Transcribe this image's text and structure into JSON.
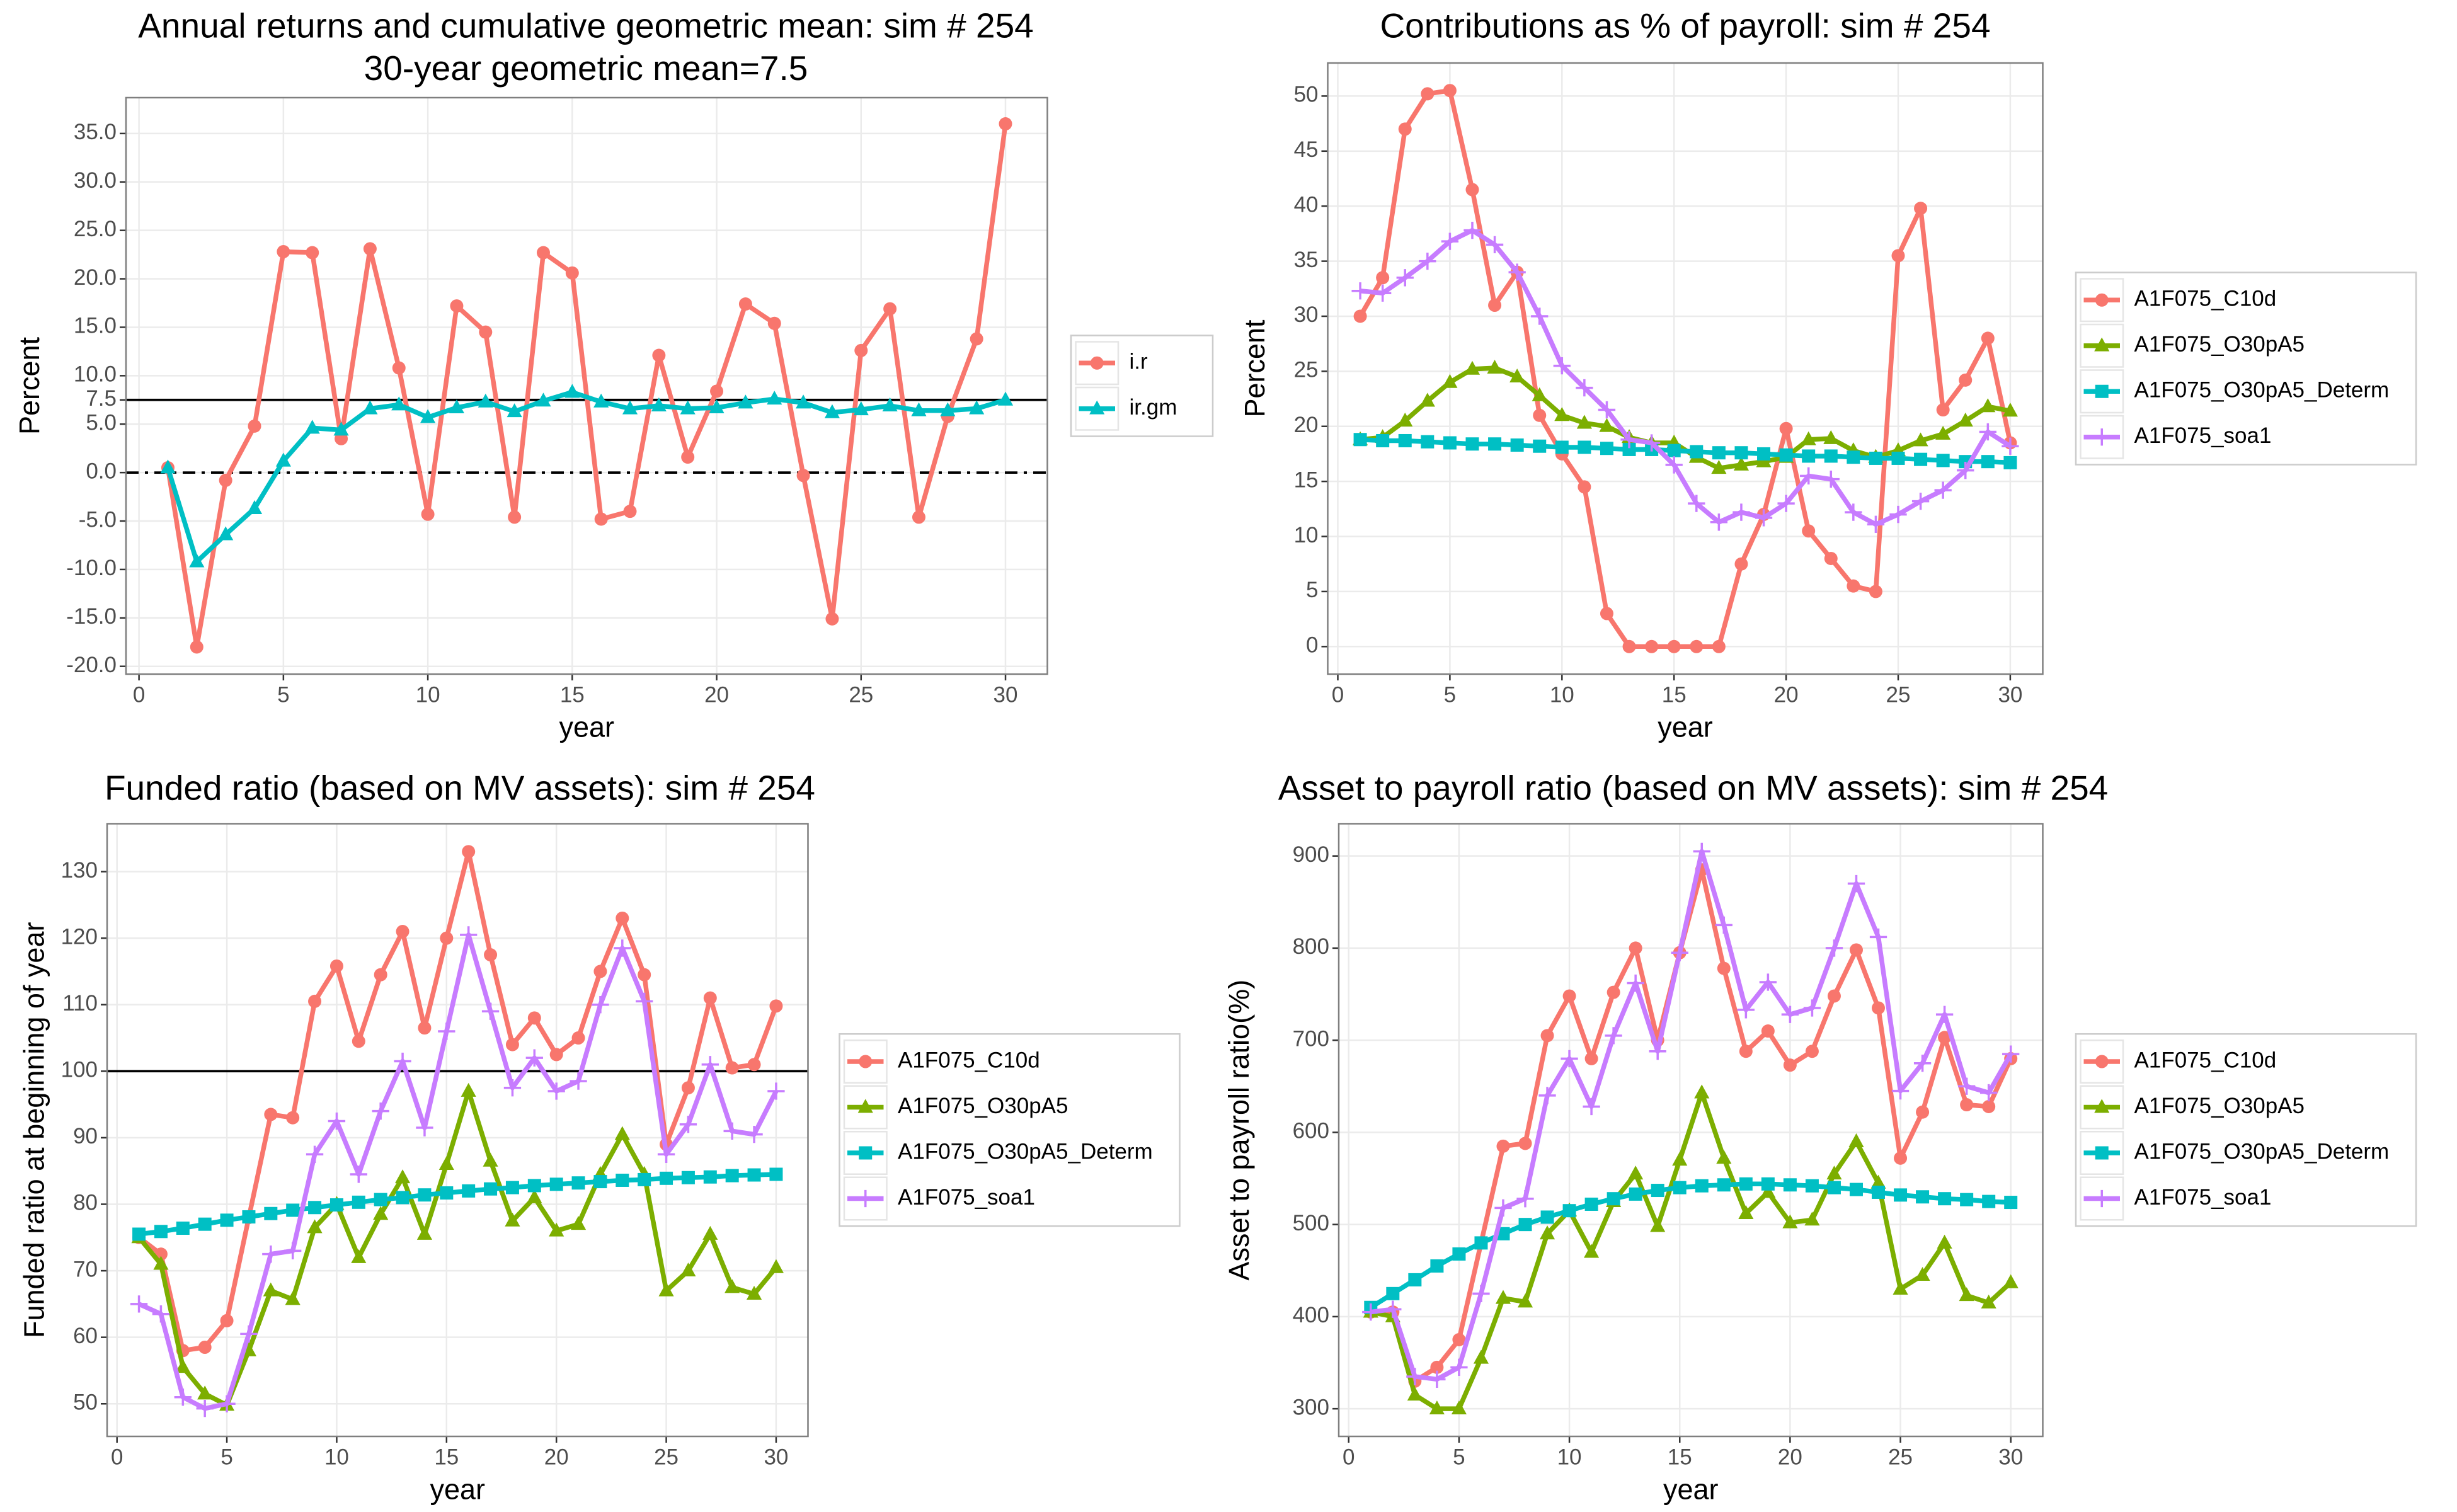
{
  "chart_data": [
    {
      "type": "line",
      "title": "Annual returns and cumulative geometric mean: sim # 254",
      "subtitle": "30-year geometric mean=7.5",
      "x_label": "year",
      "y_label": "Percent",
      "x": [
        1,
        2,
        3,
        4,
        5,
        6,
        7,
        8,
        9,
        10,
        11,
        12,
        13,
        14,
        15,
        16,
        17,
        18,
        19,
        20,
        21,
        22,
        23,
        24,
        25,
        26,
        27,
        28,
        29,
        30
      ],
      "series": [
        {
          "name": "i.r",
          "color": "#F8766D",
          "marker": "circle",
          "values": [
            0.5,
            -18.0,
            -0.8,
            4.8,
            22.8,
            22.7,
            3.5,
            23.1,
            10.8,
            -4.3,
            17.2,
            14.5,
            -4.6,
            22.7,
            20.6,
            -4.8,
            -4.0,
            12.1,
            1.6,
            8.4,
            17.4,
            15.4,
            -0.3,
            -15.1,
            12.6,
            16.9,
            -4.6,
            5.8,
            13.8,
            36.0
          ]
        },
        {
          "name": "ir.gm",
          "color": "#00BFC4",
          "marker": "triangle",
          "values": [
            0.5,
            -9.2,
            -6.4,
            -3.7,
            1.2,
            4.6,
            4.4,
            6.6,
            7.0,
            5.7,
            6.7,
            7.3,
            6.3,
            7.4,
            8.3,
            7.3,
            6.6,
            6.9,
            6.6,
            6.7,
            7.2,
            7.6,
            7.2,
            6.2,
            6.5,
            6.9,
            6.4,
            6.4,
            6.6,
            7.5
          ]
        }
      ],
      "xlim": [
        -0.45,
        31.45
      ],
      "ylim": [
        -20.8,
        38.7
      ],
      "xticks": [
        0,
        5,
        10,
        15,
        20,
        25,
        30
      ],
      "yticks": [
        {
          "value": -20,
          "label": "-20.0"
        },
        {
          "value": -15,
          "label": "-15.0"
        },
        {
          "value": -10,
          "label": "-10.0"
        },
        {
          "value": -5,
          "label": "-5.0"
        },
        {
          "value": 0,
          "label": "0.0"
        },
        {
          "value": 5,
          "label": "5.0"
        },
        7.5,
        {
          "value": 10,
          "label": "10.0"
        },
        {
          "value": 15,
          "label": "15.0"
        },
        {
          "value": 20,
          "label": "20.0"
        },
        {
          "value": 25,
          "label": "25.0"
        },
        {
          "value": 30,
          "label": "30.0"
        },
        {
          "value": 35,
          "label": "35.0"
        }
      ],
      "hlines": [
        {
          "value": 7.5,
          "style": "solid"
        },
        {
          "value": 0,
          "style": "dashdot"
        }
      ],
      "grid": true
    },
    {
      "type": "line",
      "title": "Contributions as % of payroll: sim # 254",
      "x_label": "year",
      "y_label": "Percent",
      "x": [
        1,
        2,
        3,
        4,
        5,
        6,
        7,
        8,
        9,
        10,
        11,
        12,
        13,
        14,
        15,
        16,
        17,
        18,
        19,
        20,
        21,
        22,
        23,
        24,
        25,
        26,
        27,
        28,
        29,
        30
      ],
      "series": [
        {
          "name": "A1F075_C10d",
          "color": "#F8766D",
          "marker": "circle",
          "values": [
            30,
            33.5,
            47,
            50.2,
            50.5,
            41.5,
            31,
            34,
            21,
            17.5,
            14.5,
            3,
            0,
            0,
            0,
            0,
            0,
            7.5,
            12,
            19.8,
            10.5,
            8,
            5.5,
            5,
            35.5,
            39.8,
            21.5,
            24.2,
            28,
            18.5
          ]
        },
        {
          "name": "A1F075_O30pA5",
          "color": "#7CAE00",
          "marker": "triangle",
          "values": [
            18.8,
            19,
            20.5,
            22.3,
            24,
            25.2,
            25.3,
            24.5,
            22.8,
            21,
            20.3,
            20,
            19,
            18.5,
            18.5,
            17.2,
            16.2,
            16.5,
            16.8,
            17.2,
            18.8,
            18.9,
            17.8,
            17.2,
            17.8,
            18.7,
            19.3,
            20.5,
            21.8,
            21.4
          ]
        },
        {
          "name": "A1F075_O30pA5_Determ",
          "color": "#00BFC4",
          "marker": "square",
          "values": [
            18.8,
            18.7,
            18.7,
            18.6,
            18.5,
            18.4,
            18.4,
            18.3,
            18.2,
            18.1,
            18.1,
            18,
            17.9,
            17.9,
            17.8,
            17.7,
            17.6,
            17.6,
            17.5,
            17.4,
            17.3,
            17.3,
            17.2,
            17.1,
            17.1,
            17,
            16.9,
            16.8,
            16.8,
            16.7
          ]
        },
        {
          "name": "A1F075_soa1",
          "color": "#C77CFF",
          "marker": "plus",
          "values": [
            32.3,
            32.1,
            33.5,
            35,
            36.8,
            37.8,
            36.5,
            34,
            30,
            25.5,
            23.5,
            21.5,
            18.8,
            18.5,
            16.5,
            13,
            11.3,
            12.2,
            11.7,
            13,
            15.5,
            15.2,
            12.2,
            11.1,
            12,
            13.2,
            14.2,
            16,
            19.5,
            18.2
          ]
        }
      ],
      "xlim": [
        -0.45,
        31.45
      ],
      "ylim": [
        -2.5,
        53
      ],
      "xticks": [
        0,
        5,
        10,
        15,
        20,
        25,
        30
      ],
      "yticks": [
        0,
        5,
        10,
        15,
        20,
        25,
        30,
        35,
        40,
        45,
        50
      ],
      "grid": true
    },
    {
      "type": "line",
      "title": "Funded ratio (based on MV assets): sim # 254",
      "x_label": "year",
      "y_label": "Funded ratio at beginning of year",
      "x": [
        1,
        2,
        3,
        4,
        5,
        6,
        7,
        8,
        9,
        10,
        11,
        12,
        13,
        14,
        15,
        16,
        17,
        18,
        19,
        20,
        21,
        22,
        23,
        24,
        25,
        26,
        27,
        28,
        29,
        30
      ],
      "series": [
        {
          "name": "A1F075_C10d",
          "color": "#F8766D",
          "marker": "circle",
          "values": [
            75,
            72.5,
            58,
            58.5,
            62.5,
            78,
            93.5,
            93,
            110.5,
            115.8,
            104.5,
            114.5,
            121,
            106.5,
            120,
            133,
            117.5,
            104,
            108,
            102.5,
            105,
            115,
            123,
            114.5,
            89,
            97.5,
            111,
            100.5,
            101,
            109.8
          ]
        },
        {
          "name": "A1F075_O30pA5",
          "color": "#7CAE00",
          "marker": "triangle",
          "values": [
            75,
            71,
            55.5,
            51.5,
            49.8,
            58,
            67,
            65.7,
            76.5,
            80,
            72,
            78.5,
            84,
            75.5,
            86,
            97,
            86.5,
            77.5,
            81,
            76,
            77,
            84.5,
            90.5,
            84.5,
            67,
            70,
            75.5,
            67.5,
            66.5,
            70.5
          ]
        },
        {
          "name": "A1F075_O30pA5_Determ",
          "color": "#00BFC4",
          "marker": "square",
          "values": [
            75.5,
            75.9,
            76.4,
            77,
            77.6,
            78.1,
            78.6,
            79.1,
            79.5,
            79.9,
            80.3,
            80.7,
            81,
            81.4,
            81.7,
            82,
            82.3,
            82.5,
            82.8,
            83,
            83.2,
            83.4,
            83.6,
            83.7,
            83.9,
            84,
            84.1,
            84.3,
            84.4,
            84.5
          ]
        },
        {
          "name": "A1F075_soa1",
          "color": "#C77CFF",
          "marker": "plus",
          "values": [
            65,
            63.5,
            51,
            49.3,
            50,
            60.5,
            72.5,
            73,
            87.5,
            92.5,
            84.5,
            94,
            101.5,
            91.5,
            106,
            120.5,
            109,
            97.5,
            102,
            97,
            98.5,
            110,
            118.5,
            110.5,
            87.5,
            92,
            101,
            91,
            90.5,
            97
          ]
        }
      ],
      "xlim": [
        -0.45,
        31.45
      ],
      "ylim": [
        45.1,
        137.2
      ],
      "xticks": [
        0,
        5,
        10,
        15,
        20,
        25,
        30
      ],
      "yticks": [
        50,
        60,
        70,
        80,
        90,
        100,
        110,
        120,
        130
      ],
      "hlines": [
        {
          "value": 100,
          "style": "solid"
        }
      ],
      "grid": true
    },
    {
      "type": "line",
      "title": "Asset to payroll ratio (based on MV assets): sim # 254",
      "x_label": "year",
      "y_label": "Asset to payroll ratio(%)",
      "x": [
        1,
        2,
        3,
        4,
        5,
        6,
        7,
        8,
        9,
        10,
        11,
        12,
        13,
        14,
        15,
        16,
        17,
        18,
        19,
        20,
        21,
        22,
        23,
        24,
        25,
        26,
        27,
        28,
        29,
        30
      ],
      "series": [
        {
          "name": "A1F075_C10d",
          "color": "#F8766D",
          "marker": "circle",
          "values": [
            405,
            405,
            330,
            345,
            375,
            480,
            585,
            588,
            705,
            748,
            680,
            752,
            800,
            700,
            795,
            885,
            778,
            688,
            710,
            673,
            688,
            748,
            798,
            735,
            572,
            622,
            703,
            630,
            628,
            680
          ]
        },
        {
          "name": "A1F075_O30pA5",
          "color": "#7CAE00",
          "marker": "triangle",
          "values": [
            405,
            400,
            315,
            300,
            300,
            355,
            420,
            416,
            490,
            515,
            470,
            525,
            555,
            498,
            570,
            643,
            572,
            512,
            535,
            502,
            505,
            555,
            590,
            545,
            430,
            445,
            480,
            423,
            415,
            437
          ]
        },
        {
          "name": "A1F075_O30pA5_Determ",
          "color": "#00BFC4",
          "marker": "square",
          "values": [
            410,
            425,
            440,
            455,
            468,
            480,
            490,
            500,
            508,
            515,
            522,
            528,
            533,
            537,
            540,
            542,
            543,
            544,
            544,
            543,
            542,
            540,
            538,
            535,
            532,
            530,
            528,
            527,
            525,
            524
          ]
        },
        {
          "name": "A1F075_soa1",
          "color": "#C77CFF",
          "marker": "plus",
          "values": [
            405,
            408,
            335,
            332,
            345,
            425,
            518,
            528,
            640,
            680,
            628,
            705,
            762,
            688,
            795,
            905,
            825,
            733,
            763,
            728,
            735,
            800,
            870,
            812,
            645,
            675,
            728,
            650,
            643,
            685
          ]
        }
      ],
      "xlim": [
        -0.45,
        31.45
      ],
      "ylim": [
        270,
        935
      ],
      "xticks": [
        0,
        5,
        10,
        15,
        20,
        25,
        30
      ],
      "yticks": [
        300,
        400,
        500,
        600,
        700,
        800,
        900
      ],
      "grid": true
    }
  ]
}
